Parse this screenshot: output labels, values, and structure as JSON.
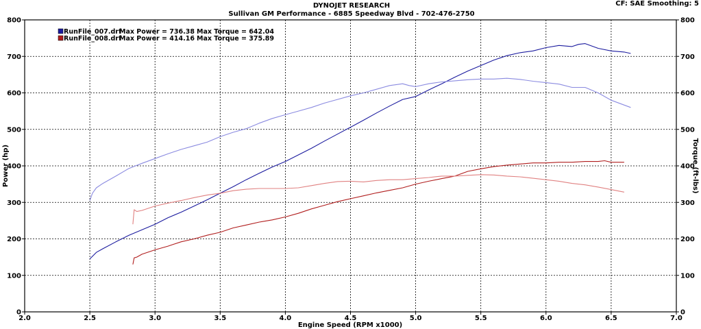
{
  "header": {
    "title": "DYNOJET RESEARCH",
    "subtitle": "Sullivan GM Performance - 6885 Speedway Blvd  - 702-476-2750",
    "settings": "CF: SAE  Smoothing: 5"
  },
  "legend": {
    "entries": [
      {
        "file": "RunFile_007.drf",
        "power_text": "Max Power = 736.38",
        "torque_text": "Max Torque = 642.04",
        "color": "#1a1a9e"
      },
      {
        "file": "RunFile_008.drf",
        "power_text": "Max Power = 414.16",
        "torque_text": "Max Torque = 375.89",
        "color": "#b01c1c"
      }
    ]
  },
  "chart_data": {
    "type": "line",
    "title": "DYNOJET RESEARCH",
    "subtitle": "Sullivan GM Performance - 6885 Speedway Blvd  - 702-476-2750",
    "xlabel": "Engine Speed (RPM x1000)",
    "ylabel": "Power (hp)",
    "y2label": "Torque (ft-lbs)",
    "xlim": [
      2.0,
      7.0
    ],
    "ylim": [
      0,
      800
    ],
    "y2lim": [
      0,
      800
    ],
    "x_ticks": [
      "2.0",
      "2.5",
      "3.0",
      "3.5",
      "4.0",
      "4.5",
      "5.0",
      "5.5",
      "6.0",
      "6.5",
      "7.0"
    ],
    "y_ticks": [
      "0",
      "100",
      "200",
      "300",
      "400",
      "500",
      "600",
      "700",
      "800"
    ],
    "grid": true,
    "series": [
      {
        "name": "RunFile_007.drf Power",
        "color": "#1a1a9e",
        "axis": "left",
        "x": [
          2.5,
          2.55,
          2.6,
          2.7,
          2.8,
          2.9,
          3.0,
          3.1,
          3.2,
          3.3,
          3.4,
          3.5,
          3.6,
          3.7,
          3.8,
          3.9,
          4.0,
          4.1,
          4.2,
          4.3,
          4.4,
          4.5,
          4.6,
          4.7,
          4.8,
          4.9,
          5.0,
          5.1,
          5.2,
          5.3,
          5.4,
          5.5,
          5.6,
          5.7,
          5.8,
          5.9,
          6.0,
          6.1,
          6.2,
          6.25,
          6.3,
          6.4,
          6.5,
          6.6,
          6.65
        ],
        "y": [
          145,
          163,
          173,
          192,
          210,
          225,
          240,
          258,
          273,
          290,
          307,
          325,
          343,
          362,
          380,
          397,
          412,
          430,
          448,
          468,
          487,
          506,
          525,
          545,
          564,
          582,
          590,
          608,
          625,
          643,
          660,
          675,
          690,
          702,
          710,
          715,
          724,
          730,
          727,
          733,
          735,
          722,
          715,
          712,
          708
        ]
      },
      {
        "name": "RunFile_007.drf Torque",
        "color": "#8a8ae0",
        "axis": "right",
        "x": [
          2.5,
          2.52,
          2.55,
          2.6,
          2.7,
          2.8,
          2.9,
          3.0,
          3.1,
          3.2,
          3.3,
          3.4,
          3.5,
          3.6,
          3.7,
          3.8,
          3.9,
          4.0,
          4.1,
          4.2,
          4.3,
          4.4,
          4.5,
          4.6,
          4.7,
          4.8,
          4.9,
          4.95,
          5.0,
          5.1,
          5.2,
          5.3,
          5.4,
          5.5,
          5.6,
          5.7,
          5.8,
          5.9,
          6.0,
          6.1,
          6.2,
          6.3,
          6.4,
          6.5,
          6.65
        ],
        "y": [
          305,
          325,
          340,
          352,
          372,
          393,
          407,
          420,
          433,
          445,
          455,
          465,
          480,
          492,
          502,
          517,
          530,
          540,
          550,
          560,
          572,
          582,
          592,
          600,
          610,
          620,
          625,
          620,
          617,
          625,
          630,
          633,
          636,
          638,
          638,
          640,
          637,
          632,
          628,
          624,
          615,
          615,
          600,
          580,
          560
        ]
      },
      {
        "name": "RunFile_008.drf Power",
        "color": "#b01c1c",
        "axis": "left",
        "x": [
          2.83,
          2.84,
          2.86,
          2.9,
          3.0,
          3.1,
          3.2,
          3.3,
          3.4,
          3.5,
          3.6,
          3.7,
          3.8,
          3.9,
          4.0,
          4.1,
          4.2,
          4.3,
          4.4,
          4.5,
          4.6,
          4.7,
          4.8,
          4.9,
          5.0,
          5.1,
          5.2,
          5.3,
          5.4,
          5.5,
          5.6,
          5.7,
          5.8,
          5.9,
          6.0,
          6.1,
          6.2,
          6.3,
          6.4,
          6.45,
          6.5,
          6.6
        ],
        "y": [
          130,
          148,
          150,
          158,
          170,
          180,
          192,
          200,
          210,
          218,
          230,
          238,
          246,
          252,
          260,
          270,
          282,
          292,
          302,
          310,
          318,
          326,
          333,
          340,
          350,
          358,
          365,
          372,
          385,
          392,
          398,
          402,
          405,
          408,
          408,
          410,
          410,
          412,
          412,
          414,
          410,
          410
        ]
      },
      {
        "name": "RunFile_008.drf Torque",
        "color": "#e08080",
        "axis": "right",
        "x": [
          2.83,
          2.84,
          2.86,
          2.9,
          3.0,
          3.1,
          3.2,
          3.3,
          3.4,
          3.5,
          3.6,
          3.7,
          3.8,
          3.9,
          4.0,
          4.1,
          4.2,
          4.3,
          4.4,
          4.5,
          4.6,
          4.7,
          4.8,
          4.9,
          5.0,
          5.1,
          5.2,
          5.3,
          5.4,
          5.5,
          5.6,
          5.7,
          5.8,
          5.9,
          6.0,
          6.1,
          6.2,
          6.3,
          6.4,
          6.5,
          6.6
        ],
        "y": [
          240,
          280,
          275,
          278,
          290,
          298,
          305,
          313,
          320,
          325,
          332,
          336,
          338,
          338,
          338,
          340,
          346,
          352,
          357,
          358,
          356,
          360,
          362,
          362,
          365,
          368,
          372,
          372,
          374,
          376,
          375,
          372,
          370,
          366,
          362,
          358,
          352,
          348,
          342,
          335,
          328
        ]
      }
    ]
  }
}
